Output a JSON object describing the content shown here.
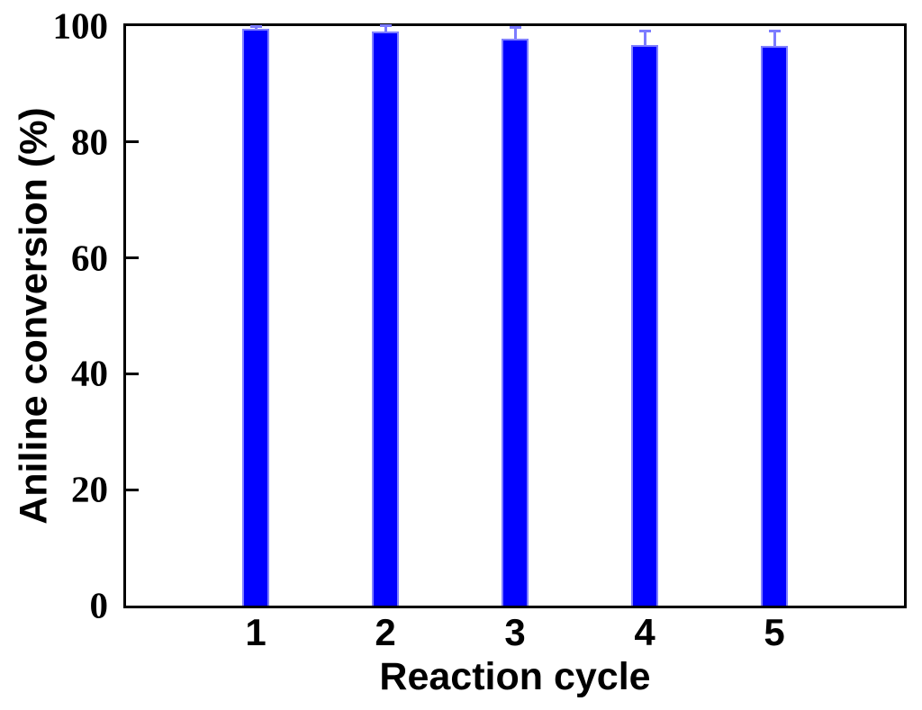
{
  "chart_data": {
    "type": "bar",
    "xlabel": "Reaction cycle",
    "ylabel": "Aniline conversion (%)",
    "categories": [
      "1",
      "2",
      "3",
      "4",
      "5"
    ],
    "series": [
      {
        "name": "Aniline conversion",
        "values": [
          99.6,
          99.1,
          97.8,
          96.8,
          96.6
        ],
        "errors_plus": [
          0.3,
          1.0,
          1.9,
          2.4,
          2.5
        ]
      }
    ],
    "ylim": [
      0,
      100
    ],
    "yticks": [
      0,
      20,
      40,
      60,
      80,
      100
    ],
    "yticks_marked": [
      20,
      40,
      60,
      80
    ],
    "grid": false,
    "legend_position": "none",
    "colors": {
      "bar_fill": "#0000ff",
      "bar_edge": "#8080ff",
      "error_bar": "#7b7bff",
      "axis": "#000000",
      "text": "#000000",
      "background": "#ffffff"
    }
  }
}
